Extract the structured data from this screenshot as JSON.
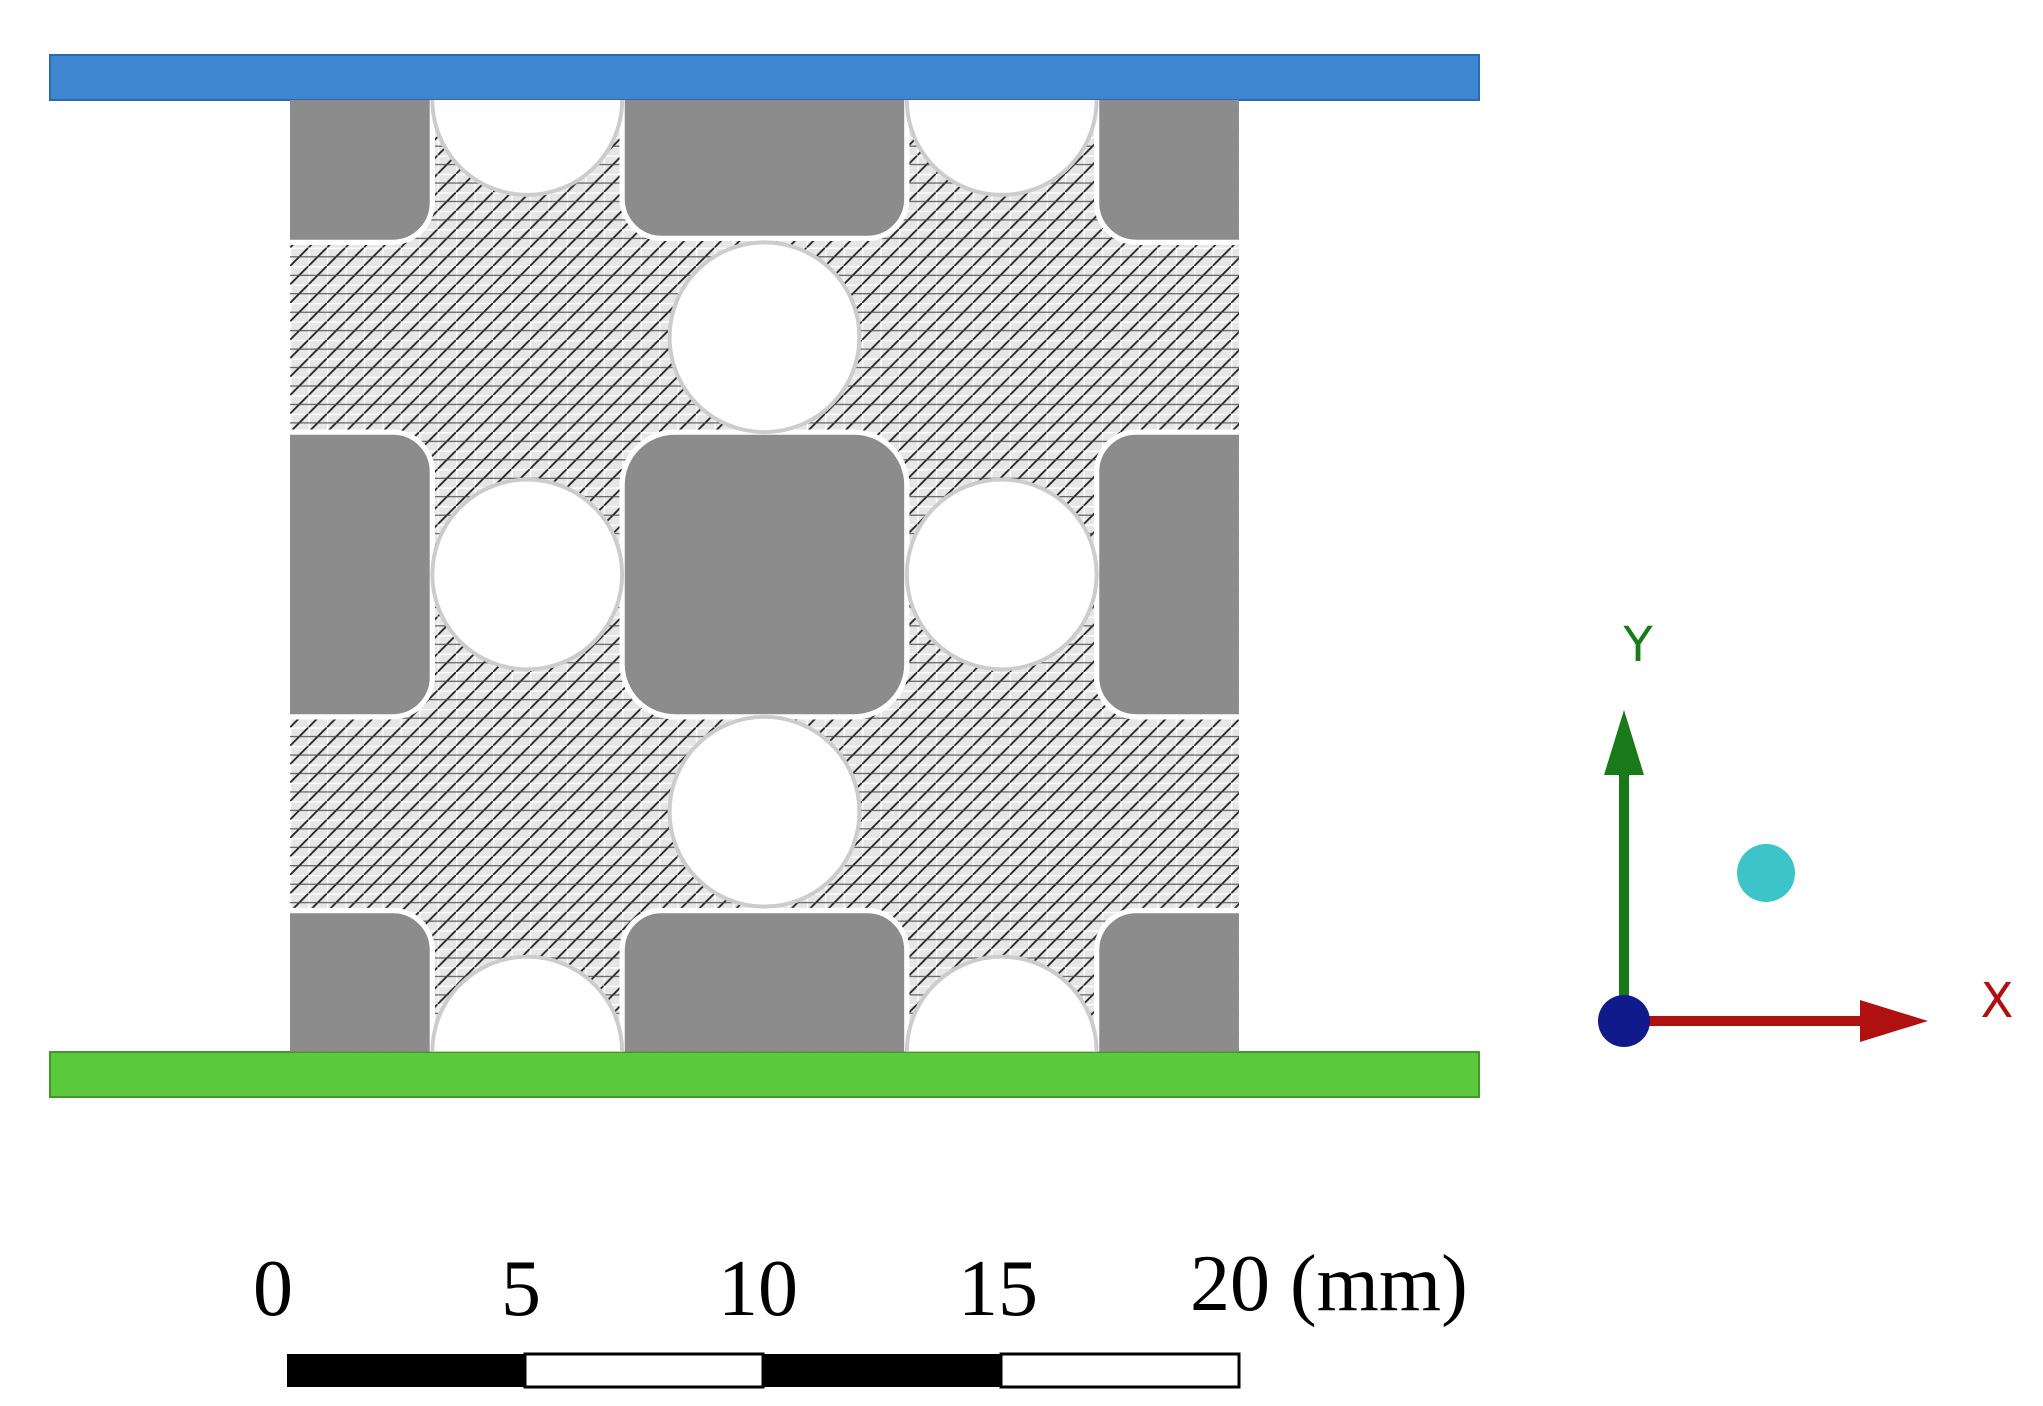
{
  "axes": {
    "y_label": "Y",
    "x_label": "X"
  },
  "scale_bar": {
    "labels": [
      "0",
      "5",
      "10",
      "15",
      "20 (mm)"
    ]
  }
}
